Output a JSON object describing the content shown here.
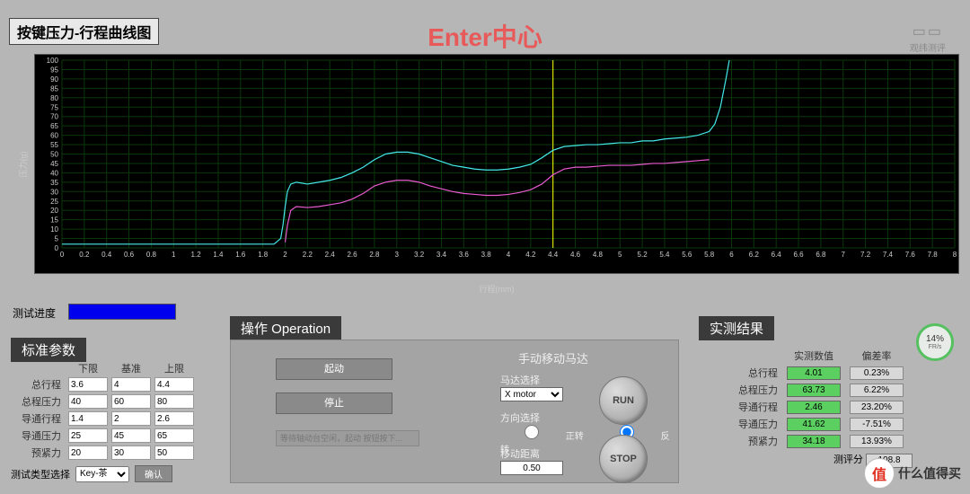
{
  "header": {
    "title": "按键压力-行程曲线图",
    "main_title": "Enter中心",
    "main_title_color": "#e85a5a",
    "logo_text": "观纬测评",
    "logo_sub": "GUANWEI TECH"
  },
  "chart": {
    "type": "line",
    "background": "#000000",
    "grid_color": "#0a380a",
    "ylabel": "压力(g)",
    "xlabel": "行程(mm)",
    "xlim": [
      0,
      8
    ],
    "xtick_step": 0.2,
    "ylim": [
      0,
      100
    ],
    "ytick_step": 5,
    "marker_line": {
      "x": 4.4,
      "color": "#ffff00"
    },
    "series": [
      {
        "name": "press",
        "color": "#44e8e8",
        "width": 1.2,
        "points": [
          [
            0,
            2
          ],
          [
            1.9,
            2
          ],
          [
            1.96,
            5
          ],
          [
            1.98,
            12
          ],
          [
            2.0,
            22
          ],
          [
            2.02,
            30
          ],
          [
            2.05,
            34
          ],
          [
            2.1,
            35
          ],
          [
            2.2,
            34
          ],
          [
            2.3,
            35
          ],
          [
            2.4,
            36
          ],
          [
            2.5,
            37.5
          ],
          [
            2.6,
            40
          ],
          [
            2.7,
            43
          ],
          [
            2.8,
            47
          ],
          [
            2.9,
            50
          ],
          [
            3.0,
            51
          ],
          [
            3.1,
            51
          ],
          [
            3.2,
            50
          ],
          [
            3.3,
            48
          ],
          [
            3.4,
            46
          ],
          [
            3.5,
            44
          ],
          [
            3.6,
            43
          ],
          [
            3.7,
            42
          ],
          [
            3.8,
            41.5
          ],
          [
            3.9,
            41.5
          ],
          [
            4.0,
            42
          ],
          [
            4.1,
            43
          ],
          [
            4.2,
            44.5
          ],
          [
            4.3,
            48
          ],
          [
            4.4,
            52
          ],
          [
            4.5,
            54
          ],
          [
            4.6,
            54.5
          ],
          [
            4.7,
            55
          ],
          [
            4.8,
            55
          ],
          [
            4.9,
            55.5
          ],
          [
            5.0,
            56
          ],
          [
            5.1,
            56
          ],
          [
            5.2,
            57
          ],
          [
            5.3,
            57
          ],
          [
            5.4,
            58
          ],
          [
            5.5,
            58.5
          ],
          [
            5.6,
            59
          ],
          [
            5.7,
            60
          ],
          [
            5.8,
            62
          ],
          [
            5.85,
            66
          ],
          [
            5.9,
            75
          ],
          [
            5.95,
            90
          ],
          [
            5.98,
            100
          ]
        ]
      },
      {
        "name": "release",
        "color": "#e85ad0",
        "width": 1.2,
        "points": [
          [
            2.0,
            3
          ],
          [
            2.02,
            12
          ],
          [
            2.05,
            20
          ],
          [
            2.1,
            22
          ],
          [
            2.2,
            21.5
          ],
          [
            2.3,
            22
          ],
          [
            2.4,
            23
          ],
          [
            2.5,
            24
          ],
          [
            2.6,
            26
          ],
          [
            2.7,
            29
          ],
          [
            2.8,
            33
          ],
          [
            2.9,
            35
          ],
          [
            3.0,
            36
          ],
          [
            3.1,
            36
          ],
          [
            3.2,
            35
          ],
          [
            3.3,
            33
          ],
          [
            3.4,
            31.5
          ],
          [
            3.5,
            30
          ],
          [
            3.6,
            29
          ],
          [
            3.7,
            28.5
          ],
          [
            3.8,
            28
          ],
          [
            3.9,
            28
          ],
          [
            4.0,
            28.5
          ],
          [
            4.1,
            29.5
          ],
          [
            4.2,
            31
          ],
          [
            4.3,
            34
          ],
          [
            4.4,
            39
          ],
          [
            4.5,
            42
          ],
          [
            4.6,
            43
          ],
          [
            4.7,
            43
          ],
          [
            4.8,
            43.5
          ],
          [
            4.9,
            44
          ],
          [
            5.0,
            44
          ],
          [
            5.1,
            44
          ],
          [
            5.2,
            44.5
          ],
          [
            5.3,
            45
          ],
          [
            5.4,
            45
          ],
          [
            5.5,
            45.5
          ],
          [
            5.6,
            46
          ],
          [
            5.7,
            46.5
          ],
          [
            5.8,
            47
          ]
        ]
      }
    ]
  },
  "progress": {
    "label": "测试进度"
  },
  "standard": {
    "title": "标准参数",
    "headers": [
      "下限",
      "基准",
      "上限"
    ],
    "rows": [
      {
        "label": "总行程",
        "lo": "3.6",
        "mid": "4",
        "hi": "4.4"
      },
      {
        "label": "总程压力",
        "lo": "40",
        "mid": "60",
        "hi": "80"
      },
      {
        "label": "导通行程",
        "lo": "1.4",
        "mid": "2",
        "hi": "2.6"
      },
      {
        "label": "导通压力",
        "lo": "25",
        "mid": "45",
        "hi": "65"
      },
      {
        "label": "预紧力",
        "lo": "20",
        "mid": "30",
        "hi": "50"
      }
    ],
    "type_label": "测试类型选择",
    "type_value": "Key-茶",
    "confirm": "确认"
  },
  "operation": {
    "title": "操作 Operation",
    "start": "起动",
    "stop": "停止",
    "hint": "等待轴动台空闲，起动 按钮按下...",
    "motor_title": "手动移动马达",
    "motor_select_label": "马达选择",
    "motor_select_value": "X motor",
    "direction_label": "方向选择",
    "dir_fwd": "正转",
    "dir_rev": "反转",
    "distance_label": "移动距离",
    "distance_value": "0.50",
    "run": "RUN",
    "stop_btn": "STOP"
  },
  "results": {
    "title": "实测结果",
    "headers": [
      "实测数值",
      "偏差率"
    ],
    "rows": [
      {
        "label": "总行程",
        "val": "4.01",
        "err": "0.23%"
      },
      {
        "label": "总程压力",
        "val": "63.73",
        "err": "6.22%"
      },
      {
        "label": "导通行程",
        "val": "2.46",
        "err": "23.20%"
      },
      {
        "label": "导通压力",
        "val": "41.62",
        "err": "-7.51%"
      },
      {
        "label": "预紧力",
        "val": "34.18",
        "err": "13.93%"
      }
    ],
    "score_label": "测评分",
    "score_value": "108.8"
  },
  "gauge": {
    "pct": "14%",
    "unit": "FR/s"
  },
  "watermark": {
    "circle": "值",
    "text": "什么值得买"
  }
}
